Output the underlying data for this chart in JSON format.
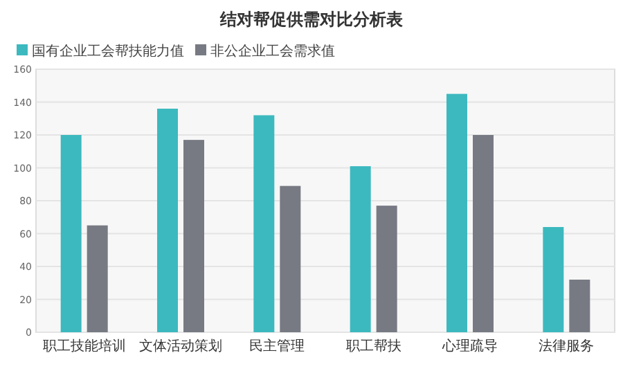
{
  "chart_data": {
    "type": "bar",
    "title": "结对帮促供需对比分析表",
    "categories": [
      "职工技能培训",
      "文体活动策划",
      "民主管理",
      "职工帮扶",
      "心理疏导",
      "法律服务"
    ],
    "series": [
      {
        "name": "国有企业工会帮扶能力值",
        "color": "#3cb9bf",
        "values": [
          120,
          136,
          132,
          101,
          145,
          64
        ]
      },
      {
        "name": "非公企业工会需求值",
        "color": "#777a83",
        "values": [
          65,
          117,
          89,
          77,
          120,
          32
        ]
      }
    ],
    "ylim": [
      0,
      160
    ],
    "yticks": [
      0,
      20,
      40,
      60,
      80,
      100,
      120,
      140,
      160
    ],
    "grid": "y",
    "legend": "top left"
  }
}
